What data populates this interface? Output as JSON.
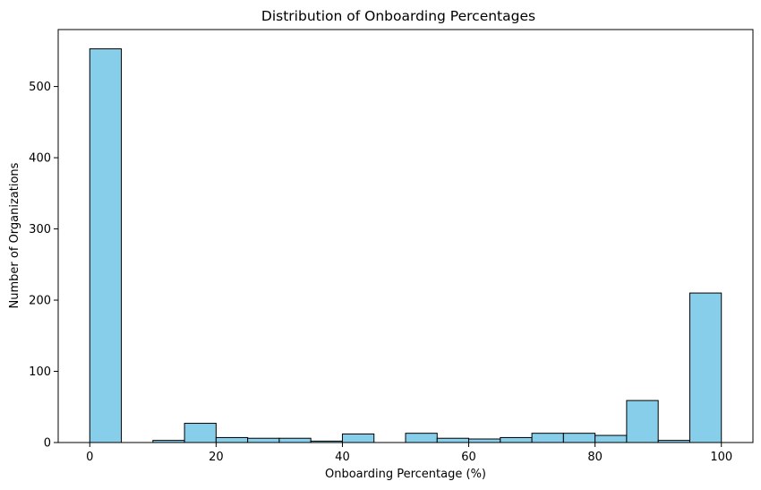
{
  "chart_data": {
    "type": "bar",
    "title": "Distribution of Onboarding Percentages",
    "xlabel": "Onboarding Percentage (%)",
    "ylabel": "Number of Organizations",
    "bin_edges": [
      0,
      5,
      10,
      15,
      20,
      25,
      30,
      35,
      40,
      45,
      50,
      55,
      60,
      65,
      70,
      75,
      80,
      85,
      90,
      95,
      100
    ],
    "values": [
      553,
      0,
      3,
      27,
      7,
      6,
      6,
      2,
      12,
      0,
      13,
      6,
      5,
      7,
      13,
      13,
      10,
      59,
      3,
      210
    ],
    "xlim": [
      -5,
      105
    ],
    "ylim": [
      0,
      580
    ],
    "xticks": [
      0,
      20,
      40,
      60,
      80,
      100
    ],
    "yticks": [
      0,
      100,
      200,
      300,
      400,
      500
    ],
    "bar_color": "#87CEEB",
    "edge_color": "#000000",
    "grid": false,
    "legend": "none"
  }
}
